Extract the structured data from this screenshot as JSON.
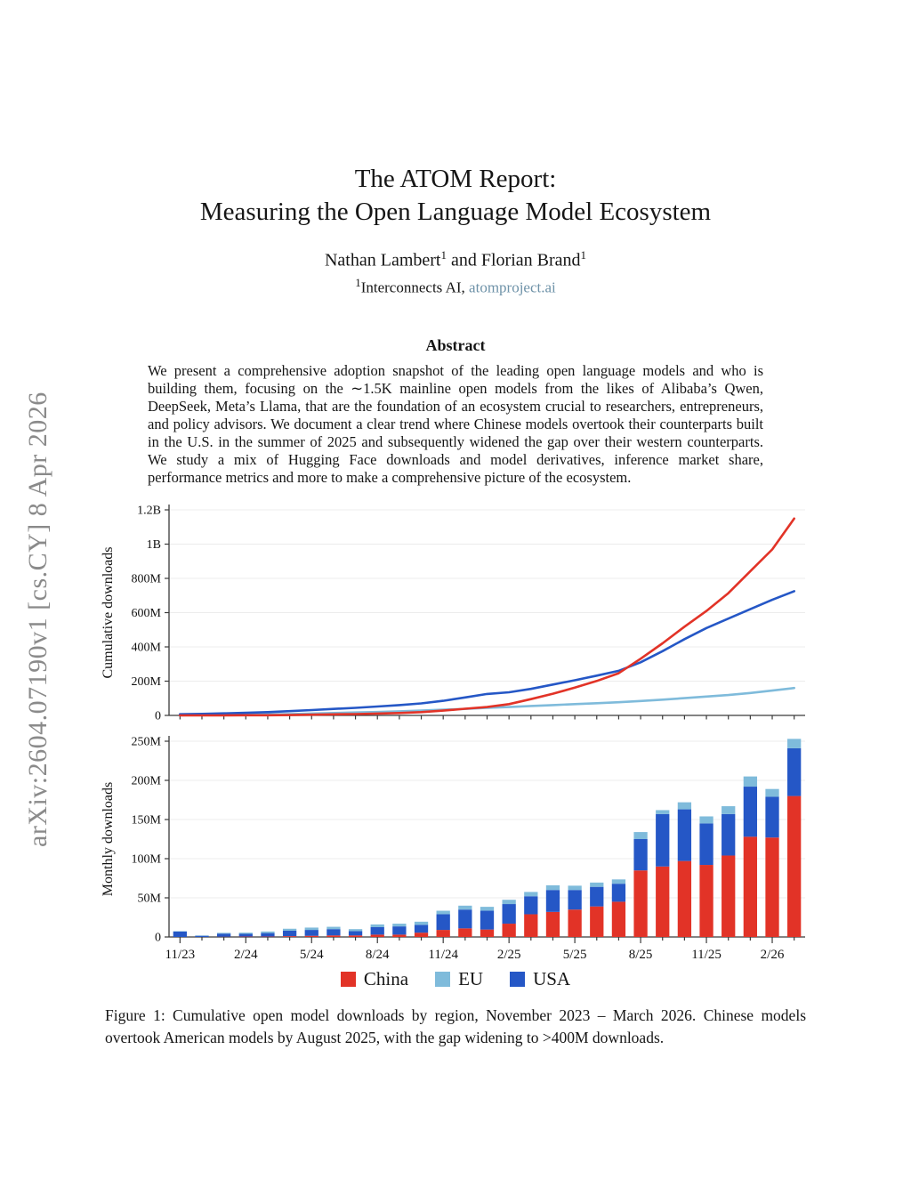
{
  "sidebar": {
    "text": "arXiv:2604.07190v1  [cs.CY]  8 Apr 2026",
    "color": "#8a8a8a"
  },
  "title": {
    "line1": "The ATOM Report:",
    "line2": "Measuring the Open Language Model Ecosystem"
  },
  "authors": {
    "a1": "Nathan Lambert",
    "a1_sup": "1",
    "joiner": " and ",
    "a2": "Florian Brand",
    "a2_sup": "1"
  },
  "affiliation": {
    "sup": "1",
    "org": "Interconnects AI, ",
    "link": "atomproject.ai",
    "link_color": "#6e92a8"
  },
  "abstract": {
    "heading": "Abstract",
    "text": "We present a comprehensive adoption snapshot of the leading open language models and who is building them, focusing on the ∼1.5K mainline open models from the likes of Alibaba’s Qwen, DeepSeek, Meta’s Llama, that are the foundation of an ecosystem crucial to researchers, entrepreneurs, and policy advisors. We document a clear trend where Chinese models overtook their counterparts built in the U.S. in the summer of 2025 and subsequently widened the gap over their western counterparts. We study a mix of Hugging Face downloads and model derivatives, inference market share, performance metrics and more to make a comprehensive picture of the ecosystem."
  },
  "legend": {
    "items": [
      {
        "label": "China",
        "color": "#e23327"
      },
      {
        "label": "EU",
        "color": "#7fbbdb"
      },
      {
        "label": "USA",
        "color": "#2557c6"
      }
    ]
  },
  "caption": {
    "text": "Figure 1: Cumulative open model downloads by region, November 2023 – March 2026. Chinese models overtook American models by August 2025, with the gap widening to >400M downloads."
  },
  "chart_data": [
    {
      "type": "line",
      "ylabel": "Cumulative downloads",
      "unit": "millions of downloads",
      "grid": true,
      "ylim": [
        0,
        1240
      ],
      "yticks": [
        {
          "v": 0,
          "label": "0"
        },
        {
          "v": 200,
          "label": "200M"
        },
        {
          "v": 400,
          "label": "400M"
        },
        {
          "v": 600,
          "label": "600M"
        },
        {
          "v": 800,
          "label": "800M"
        },
        {
          "v": 1000,
          "label": "1B"
        },
        {
          "v": 1200,
          "label": "1.2B"
        }
      ],
      "x": [
        "11/23",
        "12/23",
        "1/24",
        "2/24",
        "3/24",
        "4/24",
        "5/24",
        "6/24",
        "7/24",
        "8/24",
        "9/24",
        "10/24",
        "11/24",
        "12/24",
        "1/25",
        "2/25",
        "3/25",
        "4/25",
        "5/25",
        "6/25",
        "7/25",
        "8/25",
        "9/25",
        "10/25",
        "11/25",
        "12/25",
        "1/26",
        "2/26",
        "3/26"
      ],
      "series": [
        {
          "name": "EU",
          "color": "#7fbbdb",
          "values": [
            1,
            2,
            3,
            4,
            6,
            8,
            11,
            14,
            17,
            20,
            24,
            28,
            33,
            38,
            44,
            49,
            55,
            60,
            66,
            71,
            77,
            84,
            92,
            101,
            110,
            119,
            131,
            145,
            160
          ]
        },
        {
          "name": "USA",
          "color": "#2557c6",
          "values": [
            7,
            9,
            12,
            15,
            19,
            25,
            31,
            38,
            44,
            52,
            60,
            70,
            85,
            105,
            125,
            135,
            155,
            180,
            205,
            232,
            260,
            310,
            375,
            445,
            510,
            565,
            620,
            675,
            725
          ]
        },
        {
          "name": "China",
          "color": "#e23327",
          "values": [
            0,
            0,
            0,
            1,
            1,
            2,
            4,
            6,
            8,
            11,
            14,
            19,
            28,
            39,
            49,
            66,
            95,
            127,
            162,
            201,
            246,
            331,
            421,
            518,
            610,
            714,
            842,
            969,
            1149
          ]
        }
      ]
    },
    {
      "type": "bar",
      "stacked": true,
      "ylabel": "Monthly downloads",
      "unit": "millions of downloads",
      "grid": true,
      "label_every": 3,
      "ylim": [
        0,
        265
      ],
      "yticks": [
        {
          "v": 0,
          "label": "0"
        },
        {
          "v": 50,
          "label": "50M"
        },
        {
          "v": 100,
          "label": "100M"
        },
        {
          "v": 150,
          "label": "150M"
        },
        {
          "v": 200,
          "label": "200M"
        },
        {
          "v": 250,
          "label": "250M"
        }
      ],
      "categories": [
        "11/23",
        "12/23",
        "1/24",
        "2/24",
        "3/24",
        "4/24",
        "5/24",
        "6/24",
        "7/24",
        "8/24",
        "9/24",
        "10/24",
        "11/24",
        "12/24",
        "1/25",
        "2/25",
        "3/25",
        "4/25",
        "5/25",
        "6/25",
        "7/25",
        "8/25",
        "9/25",
        "10/25",
        "11/25",
        "12/25",
        "1/26",
        "2/26",
        "3/26"
      ],
      "series": [
        {
          "name": "China",
          "color": "#e23327",
          "values": [
            0,
            0,
            0.3,
            0.5,
            0.5,
            1,
            1.5,
            2,
            2,
            3,
            3,
            5.5,
            9,
            11,
            9.5,
            17,
            29,
            32,
            35,
            39,
            45,
            85,
            90,
            97,
            92,
            104,
            128,
            127,
            180
          ]
        },
        {
          "name": "USA",
          "color": "#2557c6",
          "values": [
            7,
            1.5,
            4,
            3.5,
            4.5,
            7,
            7.5,
            8,
            5.5,
            9.5,
            10.5,
            10,
            20,
            24,
            24,
            25,
            23,
            28,
            25,
            25,
            23,
            40,
            67,
            66,
            53,
            53,
            64,
            52,
            61
          ]
        },
        {
          "name": "EU",
          "color": "#7fbbdb",
          "values": [
            0.5,
            0.5,
            1,
            1.5,
            2,
            2.5,
            3,
            3,
            2.5,
            3.5,
            3.5,
            4,
            4.5,
            5,
            5,
            5.5,
            5.5,
            6,
            5.5,
            5.5,
            5.5,
            9,
            5,
            9,
            9,
            10,
            13,
            10,
            12
          ]
        }
      ]
    }
  ]
}
